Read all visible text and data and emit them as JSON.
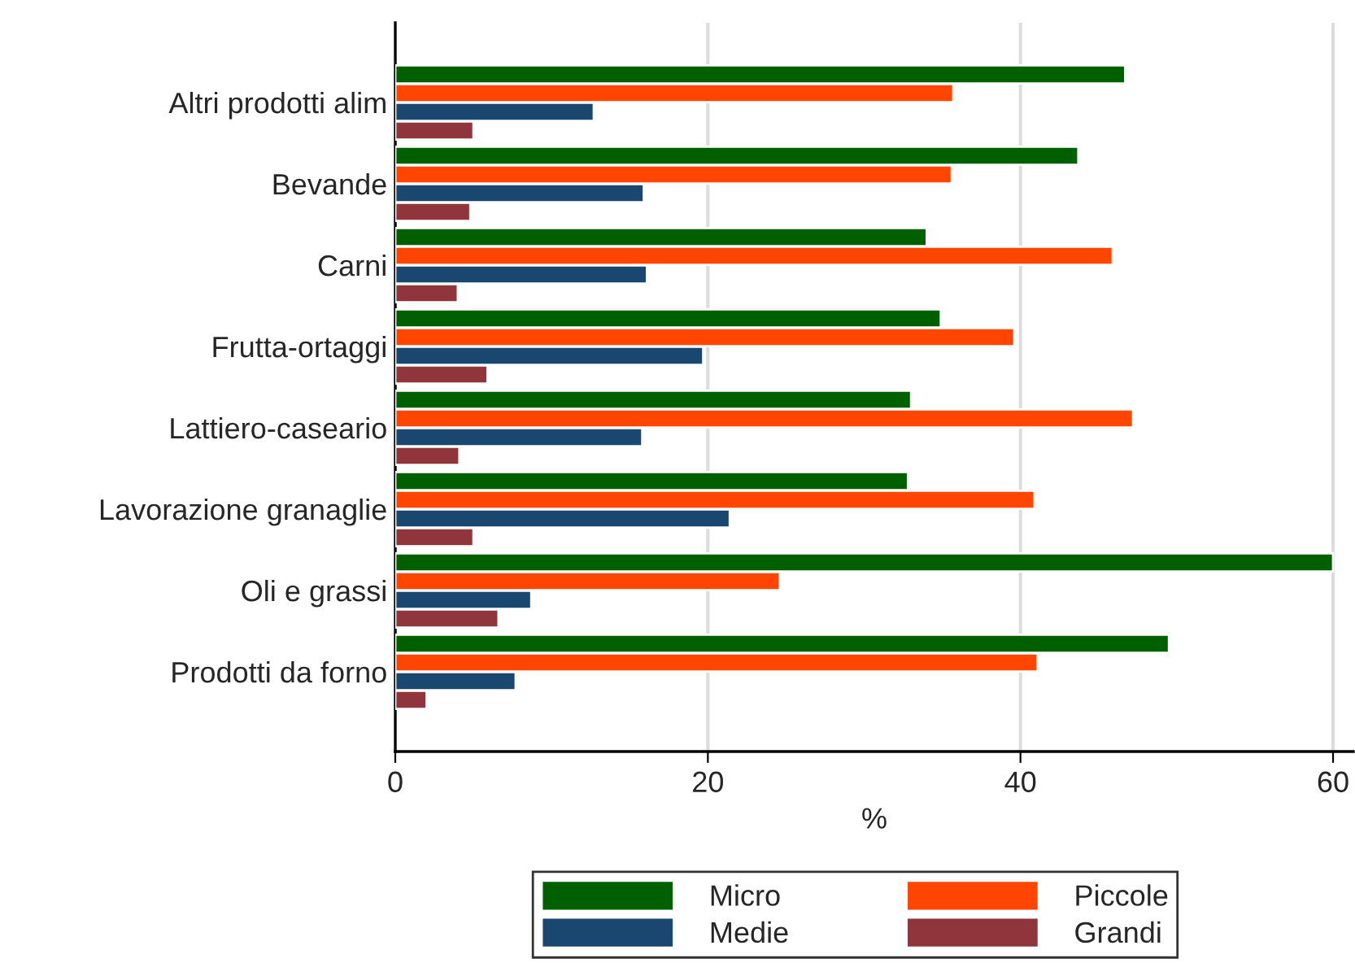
{
  "chart_data": {
    "type": "bar",
    "orientation": "horizontal",
    "xlabel": "%",
    "categories": [
      "Altri prodotti alim",
      "Bevande",
      "Carni",
      "Frutta-ortaggi",
      "Lattiero-caseario",
      "Lavorazione granaglie",
      "Oli e grassi",
      "Prodotti da forno"
    ],
    "series": [
      {
        "name": "Micro",
        "color": "#006000",
        "values": [
          46.7,
          43.7,
          34.0,
          34.9,
          33.0,
          32.8,
          60.0,
          49.5
        ]
      },
      {
        "name": "Piccole",
        "color": "#ff4500",
        "values": [
          35.7,
          35.6,
          45.9,
          39.6,
          47.2,
          40.9,
          24.6,
          41.1
        ]
      },
      {
        "name": "Medie",
        "color": "#1a476f",
        "values": [
          12.7,
          15.9,
          16.1,
          19.7,
          15.8,
          21.4,
          8.7,
          7.7
        ]
      },
      {
        "name": "Grandi",
        "color": "#90353b",
        "values": [
          5.0,
          4.8,
          4.0,
          5.9,
          4.1,
          5.0,
          6.6,
          2.0
        ]
      }
    ],
    "xlim": [
      0,
      61.3
    ],
    "xticks": [
      0,
      20,
      40,
      60
    ],
    "grid": "x",
    "legend": "bottom"
  }
}
